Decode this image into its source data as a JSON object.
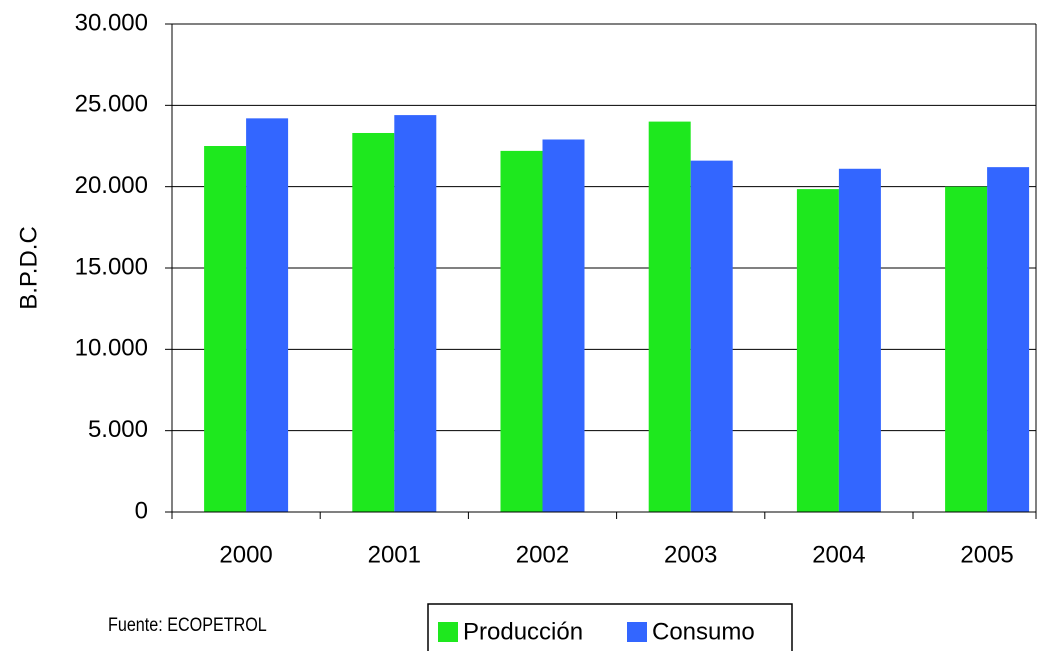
{
  "chart_data": {
    "type": "bar",
    "y_label": "B.P.D.C",
    "source": "Fuente: ECOPETROL",
    "categories": [
      "2000",
      "2001",
      "2002",
      "2003",
      "2004",
      "2005"
    ],
    "series": [
      {
        "name": "Producción",
        "color": "#1ee81e",
        "values": [
          22500,
          23300,
          22200,
          24000,
          19850,
          20000
        ]
      },
      {
        "name": "Consumo",
        "color": "#3366ff",
        "values": [
          24200,
          24400,
          22900,
          21600,
          21100,
          21200
        ]
      }
    ],
    "ylim": [
      0,
      30000
    ],
    "yticks": [
      {
        "value": 0,
        "label": "0"
      },
      {
        "value": 5000,
        "label": "5.000"
      },
      {
        "value": 10000,
        "label": "10.000"
      },
      {
        "value": 15000,
        "label": "15.000"
      },
      {
        "value": 20000,
        "label": "20.000"
      },
      {
        "value": 25000,
        "label": "25.000"
      },
      {
        "value": 30000,
        "label": "30.000"
      }
    ],
    "grid": true,
    "legend": "bottom"
  }
}
